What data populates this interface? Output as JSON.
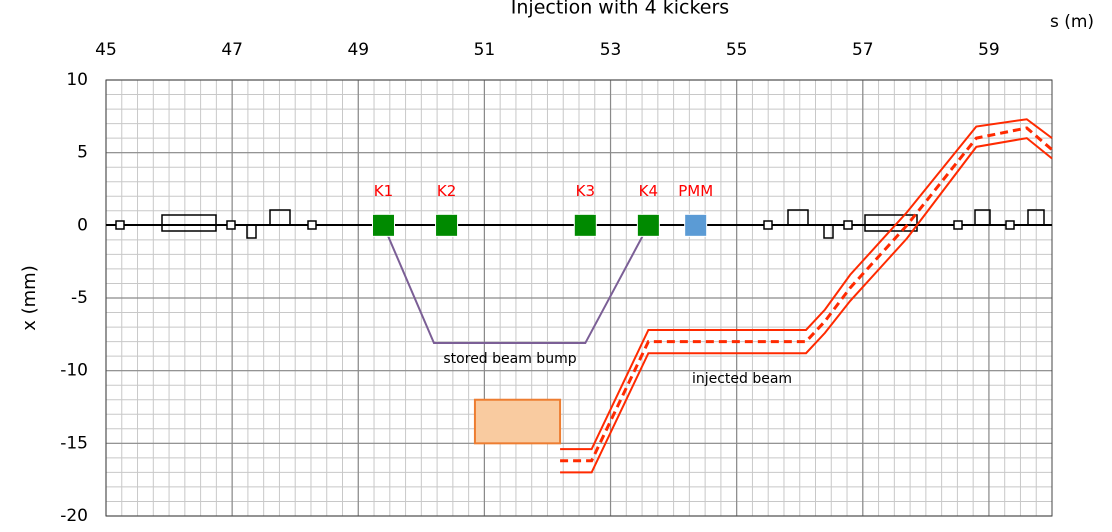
{
  "chart_data": {
    "type": "line",
    "title": "Injection with 4 kickers",
    "xlabel": "s (m)",
    "ylabel": "x (mm)",
    "xlim": [
      45,
      60
    ],
    "ylim": [
      -20,
      10
    ],
    "xticks": [
      45,
      47,
      49,
      51,
      53,
      55,
      57,
      59
    ],
    "yticks": [
      -20,
      -15,
      -10,
      -5,
      0,
      5,
      10
    ],
    "grid": true,
    "series": [
      {
        "color": "#7b5f96",
        "style": "solid",
        "x": [
          49.4,
          50.2,
          52.6,
          53.6
        ],
        "values": [
          0,
          -8.1,
          -8.1,
          0
        ]
      },
      {
        "color": "#ff2a00",
        "style": "dashed",
        "x": [
          52.2,
          52.7,
          53.6,
          56.1,
          56.4,
          56.8,
          57.7,
          58.8,
          59.6,
          60
        ],
        "values": [
          -16.2,
          -16.2,
          -8,
          -8,
          -6.6,
          -4.3,
          0,
          6.0,
          6.7,
          5.2
        ]
      },
      {
        "color": "#ff2a00",
        "style": "solid",
        "x": [
          52.2,
          52.7,
          53.6,
          56.1,
          56.4,
          56.8,
          57.7,
          58.8,
          59.6,
          60
        ],
        "values": [
          -15.4,
          -15.4,
          -7.2,
          -7.2,
          -5.8,
          -3.4,
          0.9,
          6.8,
          7.3,
          6.0
        ]
      },
      {
        "color": "#ff2a00",
        "style": "solid",
        "x": [
          52.2,
          52.7,
          53.6,
          56.1,
          56.4,
          56.8,
          57.7,
          58.8,
          59.6,
          60
        ],
        "values": [
          -17,
          -17,
          -8.8,
          -8.8,
          -7.4,
          -5.2,
          -0.9,
          5.4,
          6.0,
          4.6
        ]
      }
    ],
    "markers": [
      {
        "label": "K1",
        "x": 49.4,
        "color": "#008a00"
      },
      {
        "label": "K2",
        "x": 50.4,
        "color": "#008a00"
      },
      {
        "label": "K3",
        "x": 52.6,
        "color": "#008a00"
      },
      {
        "label": "K4",
        "x": 53.6,
        "color": "#008a00"
      },
      {
        "label": "PMM",
        "x": 54.35,
        "color": "#5b9bd5"
      }
    ],
    "boxes": [
      {
        "x": [
          50.85,
          52.2
        ],
        "values": [
          -12,
          -15
        ],
        "color": "#f9cba0"
      }
    ],
    "annotations": [
      "stored beam bump",
      "injected beam"
    ]
  }
}
